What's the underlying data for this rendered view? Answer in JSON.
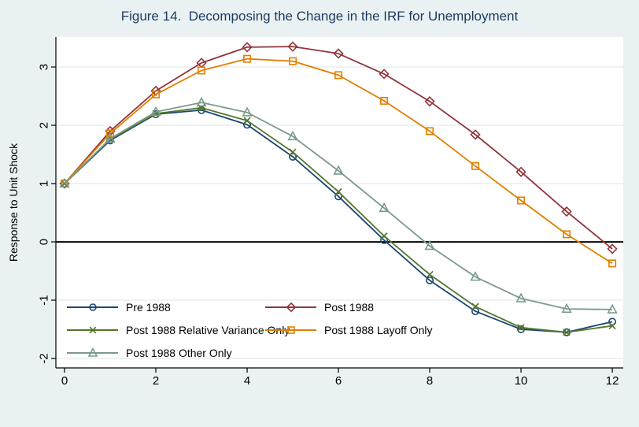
{
  "colors": {
    "background": "#eaf1f3",
    "plot_background": "#ffffff",
    "gridline": "#e3ebee",
    "axis": "#000000",
    "zero_line": "#000000",
    "title": "#1c3a5e",
    "tick_label": "#000000"
  },
  "chart_data": {
    "type": "line",
    "title": "Figure 14.  Decomposing the Change in the IRF for Unemployment",
    "xlabel": "",
    "ylabel": "Response to Unit Shock",
    "x": [
      0,
      1,
      2,
      3,
      4,
      5,
      6,
      7,
      8,
      9,
      10,
      11,
      12
    ],
    "xticks": [
      0,
      2,
      4,
      6,
      8,
      10,
      12
    ],
    "yticks": [
      -2,
      -1,
      0,
      1,
      2,
      3
    ],
    "xlim": [
      -0.19,
      12.24
    ],
    "ylim": [
      -2.162,
      3.514
    ],
    "grid": "horizontal-only",
    "zero_reference_line": true,
    "legend_position": "inside-bottom-left",
    "series": [
      {
        "name": "Pre 1988",
        "color": "#1a476f",
        "marker": "circle",
        "values": [
          1.0,
          1.74,
          2.19,
          2.26,
          2.01,
          1.46,
          0.78,
          0.03,
          -0.66,
          -1.19,
          -1.5,
          -1.55,
          -1.37
        ]
      },
      {
        "name": "Post 1988",
        "color": "#90353b",
        "marker": "diamond",
        "values": [
          1.0,
          1.9,
          2.59,
          3.07,
          3.34,
          3.35,
          3.23,
          2.88,
          2.41,
          1.84,
          1.2,
          0.52,
          -0.12
        ]
      },
      {
        "name": "Post 1988 Relative Variance Only",
        "color": "#55752f",
        "marker": "x",
        "values": [
          1.0,
          1.76,
          2.2,
          2.3,
          2.08,
          1.54,
          0.86,
          0.1,
          -0.56,
          -1.11,
          -1.47,
          -1.55,
          -1.44
        ]
      },
      {
        "name": "Post 1988 Layoff Only",
        "color": "#e37e00",
        "marker": "square",
        "values": [
          1.0,
          1.86,
          2.53,
          2.94,
          3.14,
          3.1,
          2.86,
          2.42,
          1.9,
          1.3,
          0.71,
          0.13,
          -0.37
        ]
      },
      {
        "name": "Post 1988 Other Only",
        "color": "#7a9a8c",
        "marker": "triangle",
        "values": [
          1.0,
          1.77,
          2.23,
          2.39,
          2.22,
          1.81,
          1.22,
          0.58,
          -0.07,
          -0.6,
          -0.97,
          -1.15,
          -1.16
        ]
      }
    ],
    "legend_order_row_major": [
      "Pre 1988",
      "Post 1988",
      "Post 1988 Relative Variance Only",
      "Post 1988 Layoff Only",
      "Post 1988 Other Only"
    ]
  }
}
